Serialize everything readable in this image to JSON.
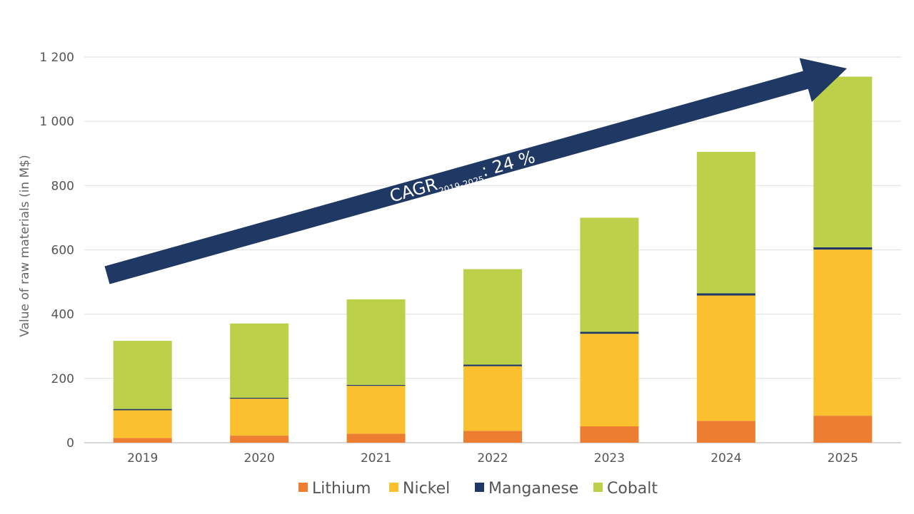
{
  "chart_data": {
    "type": "bar",
    "stacked": true,
    "title": "",
    "xlabel": "",
    "ylabel": "Value of raw materials (in M$)",
    "ylim": [
      0,
      1200
    ],
    "yticks": [
      0,
      200,
      400,
      600,
      800,
      1000,
      1200
    ],
    "ytick_labels": [
      "0",
      "200",
      "400",
      "600",
      "800",
      "1 000",
      "1 200"
    ],
    "grid": true,
    "legend_position": "bottom",
    "categories": [
      "2019",
      "2020",
      "2021",
      "2022",
      "2023",
      "2024",
      "2025"
    ],
    "series": [
      {
        "name": "Lithium",
        "color": "#ED7D31",
        "values": [
          15,
          22,
          28,
          37,
          51,
          68,
          84
        ]
      },
      {
        "name": "Nickel",
        "color": "#FBC02D",
        "values": [
          86,
          115,
          149,
          201,
          288,
          390,
          517
        ]
      },
      {
        "name": "Manganese",
        "color": "#1F3864",
        "values": [
          4,
          3,
          3,
          5,
          6,
          7,
          7
        ]
      },
      {
        "name": "Cobalt",
        "color": "#BCD04A",
        "values": [
          212,
          231,
          266,
          297,
          355,
          440,
          531
        ]
      }
    ],
    "annotation": {
      "main": "CAGR",
      "subscript": "2019-2025",
      "suffix": ": 24 %",
      "color": "#1F3864"
    }
  }
}
